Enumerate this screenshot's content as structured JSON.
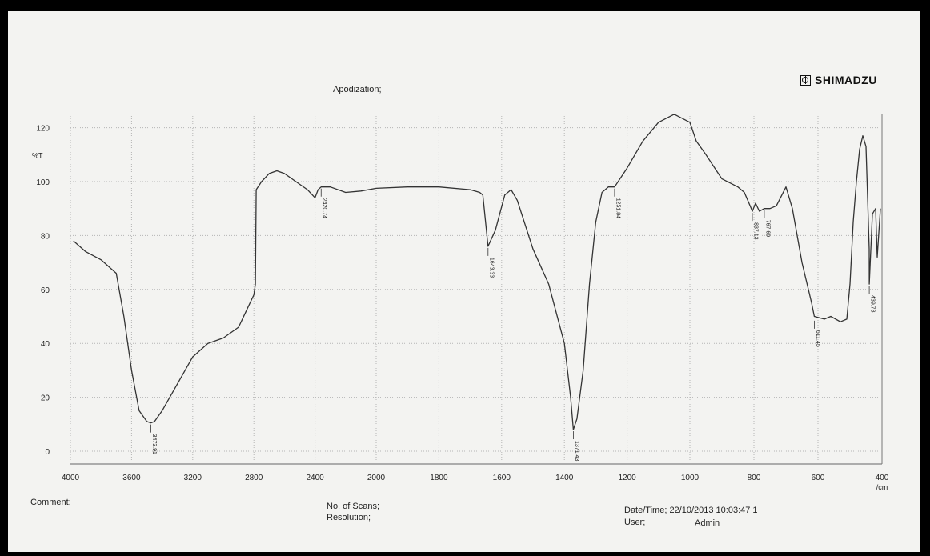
{
  "brand": "SHIMADZU",
  "apodization_label": "Apodization;",
  "footer": {
    "comment_label": "Comment;",
    "scans_label": "No. of Scans;",
    "resolution_label": "Resolution;",
    "datetime_label": "Date/Time; 22/10/2013 10:03:47 1",
    "user_label": "User;",
    "user_value": "Admin"
  },
  "chart_data": {
    "type": "line",
    "title": "",
    "xlabel": "/cm",
    "ylabel": "%T",
    "xlim": [
      4000,
      400
    ],
    "ylim": [
      -2,
      128
    ],
    "x_ticks": [
      4000,
      3600,
      3200,
      2800,
      2400,
      2000,
      1800,
      1600,
      1400,
      1200,
      1000,
      800,
      600,
      400
    ],
    "y_ticks": [
      0,
      20,
      40,
      60,
      80,
      100,
      120
    ],
    "grid": true,
    "line_color": "#333333",
    "series": [
      {
        "x": [
          3980,
          3900,
          3800,
          3700,
          3650,
          3600,
          3550,
          3500,
          3473.91,
          3450,
          3400,
          3300,
          3200,
          3100,
          3000,
          2900,
          2850,
          2800,
          2790,
          2785,
          2750,
          2700,
          2650,
          2600,
          2550,
          2500,
          2450,
          2400,
          2380,
          2360,
          2350,
          2300,
          2200,
          2100,
          2000,
          1900,
          1800,
          1700,
          1670,
          1660,
          1643.33,
          1620,
          1590,
          1570,
          1550,
          1500,
          1450,
          1400,
          1380,
          1371.43,
          1360,
          1340,
          1320,
          1300,
          1280,
          1260,
          1240,
          1200,
          1150,
          1100,
          1050,
          1000,
          980,
          950,
          900,
          850,
          830,
          812,
          805,
          795,
          783,
          767.69,
          750,
          730,
          700,
          680,
          650,
          620,
          611.45,
          580,
          560,
          530,
          510,
          500,
          490,
          480,
          470,
          460,
          450,
          440,
          439.78,
          430,
          420,
          415,
          405
        ],
        "y": [
          78,
          74,
          71,
          66,
          50,
          30,
          15,
          11,
          10.5,
          11,
          15,
          25,
          35,
          40,
          42,
          46,
          52,
          58,
          62,
          97,
          100,
          103,
          104,
          103,
          101,
          99,
          97,
          94,
          97,
          98,
          98,
          98,
          96,
          96.5,
          97.5,
          98,
          98,
          97,
          96,
          95,
          76,
          82,
          95,
          97,
          93,
          75,
          62,
          40,
          20,
          8,
          12,
          30,
          62,
          85,
          96,
          98,
          98,
          105,
          115,
          122,
          125,
          122,
          115,
          110,
          101,
          98,
          96,
          91,
          89,
          92,
          89,
          90,
          90,
          91,
          98,
          90,
          70,
          55,
          50,
          49,
          50,
          48,
          49,
          62,
          85,
          100,
          112,
          117,
          113,
          75,
          62,
          88,
          90,
          72,
          90
        ]
      }
    ],
    "peak_labels": [
      {
        "x": 3473.91,
        "y": 10.5,
        "label": "3473.91"
      },
      {
        "x": 2360,
        "y": 98,
        "label": "2420.74"
      },
      {
        "x": 1643.33,
        "y": 76,
        "label": "1643.33"
      },
      {
        "x": 1371.43,
        "y": 8,
        "label": "1371.43"
      },
      {
        "x": 1240,
        "y": 98,
        "label": "1251.84"
      },
      {
        "x": 805,
        "y": 89,
        "label": "837.13"
      },
      {
        "x": 767.69,
        "y": 90,
        "label": "767.69"
      },
      {
        "x": 611.45,
        "y": 49,
        "label": "611.45"
      },
      {
        "x": 439.78,
        "y": 62,
        "label": "439.78"
      }
    ]
  }
}
